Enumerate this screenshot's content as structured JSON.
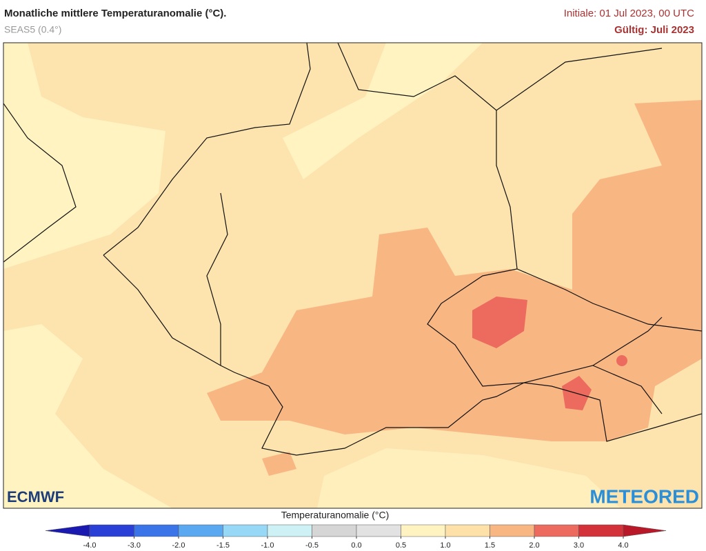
{
  "header": {
    "title": "Monatliche mittlere Temperaturanomalie (°C).",
    "subtitle": "SEAS5 (0.4°)",
    "initial": "Initiale: 01 Jul 2023, 00 UTC",
    "valid": "Gültig: Juli 2023"
  },
  "logos": {
    "left": "ECMWF",
    "right": "METEORED"
  },
  "legend": {
    "title": "Temperaturanomalie (°C)",
    "ticks": [
      "-4.0",
      "-3.0",
      "-2.0",
      "-1.5",
      "-1.0",
      "-0.5",
      "0.0",
      "0.5",
      "1.0",
      "1.5",
      "2.0",
      "3.0",
      "4.0"
    ],
    "colors": [
      "#2a3fd6",
      "#3a74e8",
      "#5aa8f0",
      "#97d8f6",
      "#cdf1f4",
      "#d6d6d6",
      "#e2e2e2",
      "#fff3c2",
      "#fde1a8",
      "#f8b683",
      "#ec6b5e",
      "#d4323a"
    ],
    "low_color": "#1a1ab0",
    "high_color": "#b81828"
  }
}
